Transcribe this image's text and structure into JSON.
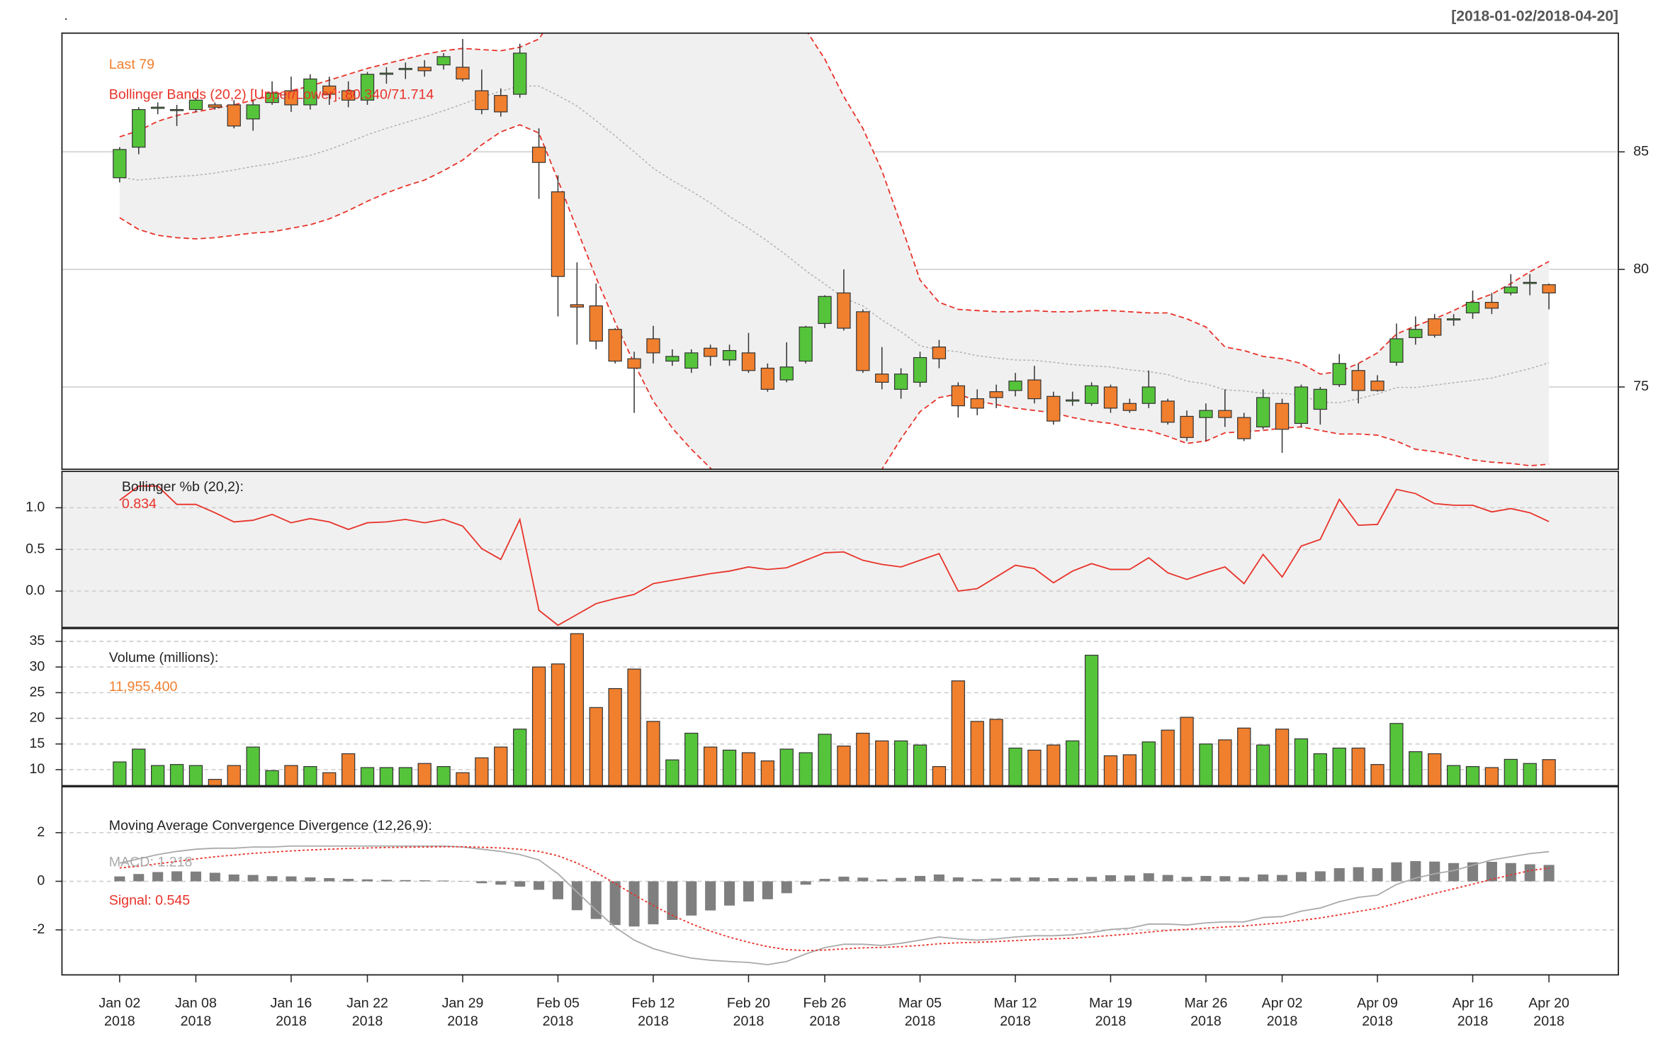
{
  "chart_data": [
    {
      "type": "candlestick",
      "name": ".",
      "title": "[2018-01-02/2018-04-20]",
      "last_label": "Last 79",
      "bbands_label": "Bollinger Bands (20,2) [Upper/Lower]: 80.340/71.714",
      "open": [
        83.9,
        85.2,
        86.85,
        86.8,
        86.8,
        87.0,
        87.0,
        86.4,
        87.1,
        87.6,
        87.0,
        87.8,
        87.6,
        87.2,
        88.3,
        88.5,
        88.6,
        88.7,
        88.6,
        87.6,
        87.4,
        87.45,
        85.2,
        83.3,
        78.5,
        78.45,
        77.45,
        76.2,
        77.05,
        76.1,
        75.8,
        76.65,
        76.15,
        76.45,
        75.8,
        75.3,
        76.1,
        77.7,
        79.0,
        78.2,
        75.55,
        74.9,
        75.2,
        76.7,
        75.05,
        74.5,
        74.8,
        74.85,
        75.3,
        74.6,
        74.4,
        74.3,
        75.0,
        74.3,
        74.3,
        74.4,
        73.75,
        73.7,
        74.0,
        73.7,
        73.3,
        74.3,
        73.45,
        74.05,
        75.1,
        75.7,
        75.25,
        76.05,
        77.1,
        77.9,
        77.85,
        78.15,
        78.6,
        79.0,
        79.4,
        79.35
      ],
      "high": [
        85.2,
        86.9,
        87.1,
        87.0,
        87.3,
        87.1,
        87.2,
        87.2,
        88.0,
        88.2,
        88.3,
        88.2,
        88.0,
        88.4,
        88.6,
        88.8,
        88.9,
        89.2,
        89.8,
        88.5,
        87.7,
        89.6,
        86.0,
        84.0,
        80.3,
        79.4,
        77.5,
        76.5,
        77.6,
        76.6,
        76.6,
        76.8,
        76.8,
        77.3,
        76.0,
        76.9,
        77.6,
        78.9,
        80.0,
        78.3,
        76.7,
        75.8,
        76.5,
        77.0,
        75.2,
        74.9,
        75.1,
        75.6,
        75.9,
        74.8,
        74.8,
        75.2,
        75.1,
        74.5,
        75.7,
        74.5,
        74.0,
        74.3,
        74.9,
        73.9,
        74.9,
        74.5,
        75.1,
        75.0,
        76.4,
        76.0,
        75.5,
        77.7,
        78.0,
        78.1,
        78.1,
        79.1,
        79.0,
        79.8,
        79.8,
        79.4
      ],
      "low": [
        83.7,
        84.9,
        86.6,
        86.1,
        86.7,
        86.8,
        86.0,
        85.9,
        87.0,
        86.7,
        86.8,
        87.0,
        86.9,
        87.0,
        87.9,
        88.1,
        88.2,
        88.5,
        88.0,
        86.6,
        86.5,
        87.3,
        83.0,
        78.0,
        76.8,
        76.6,
        76.0,
        73.9,
        76.0,
        75.9,
        75.6,
        75.9,
        75.9,
        75.6,
        74.8,
        75.2,
        76.0,
        77.5,
        77.4,
        75.6,
        74.9,
        74.5,
        75.0,
        75.8,
        73.7,
        73.8,
        74.1,
        74.6,
        74.3,
        73.4,
        74.2,
        74.2,
        73.9,
        73.9,
        74.1,
        73.4,
        72.7,
        72.7,
        73.3,
        72.7,
        73.2,
        72.2,
        73.3,
        73.4,
        75.0,
        74.3,
        74.8,
        75.9,
        76.8,
        77.1,
        77.6,
        77.9,
        78.1,
        78.9,
        78.9,
        78.3
      ],
      "close": [
        85.1,
        86.8,
        86.9,
        86.8,
        87.2,
        86.9,
        86.1,
        87.0,
        87.5,
        87.0,
        88.1,
        87.45,
        87.2,
        88.3,
        88.35,
        88.55,
        88.45,
        89.05,
        88.1,
        86.8,
        86.7,
        89.2,
        84.55,
        79.7,
        78.4,
        76.95,
        76.1,
        75.8,
        76.45,
        76.3,
        76.45,
        76.3,
        76.55,
        75.7,
        74.9,
        75.85,
        77.55,
        78.85,
        77.5,
        75.7,
        75.2,
        75.55,
        76.25,
        76.2,
        74.2,
        74.1,
        74.55,
        75.25,
        74.5,
        73.55,
        74.45,
        75.05,
        74.1,
        74.0,
        75.0,
        73.5,
        72.85,
        74.0,
        73.7,
        72.8,
        74.55,
        73.2,
        75.0,
        74.9,
        76.0,
        74.85,
        74.85,
        77.05,
        77.45,
        77.2,
        77.9,
        78.6,
        78.35,
        79.25,
        79.45,
        79.0
      ],
      "up_color": "#55c43b",
      "down_color": "#f07f2e",
      "bbands": {
        "color": "#e8332a",
        "middle_color": "#b0b0b0",
        "fill": "#f0f0f0",
        "upper": [
          85.64,
          85.9,
          86.3,
          86.55,
          86.7,
          86.85,
          87.0,
          87.2,
          87.4,
          87.6,
          87.8,
          88.05,
          88.3,
          88.55,
          88.75,
          88.95,
          89.15,
          89.3,
          89.4,
          89.35,
          89.3,
          89.45,
          89.8,
          91.0,
          92.2,
          93.0,
          93.6,
          94.0,
          94.2,
          94.3,
          94.3,
          94.1,
          93.7,
          93.2,
          92.5,
          91.5,
          90.2,
          88.95,
          87.35,
          86.0,
          84.2,
          81.9,
          79.55,
          78.6,
          78.3,
          78.25,
          78.2,
          78.2,
          78.25,
          78.2,
          78.2,
          78.25,
          78.25,
          78.2,
          78.15,
          78.15,
          77.9,
          77.55,
          76.7,
          76.55,
          76.3,
          76.2,
          76.0,
          75.55,
          75.65,
          76.0,
          76.45,
          77.25,
          77.6,
          77.9,
          78.25,
          78.65,
          78.95,
          79.4,
          79.9,
          80.34
        ],
        "middle": [
          83.92,
          83.8,
          83.88,
          83.95,
          84.0,
          84.1,
          84.23,
          84.38,
          84.5,
          84.68,
          84.85,
          85.1,
          85.4,
          85.73,
          86.0,
          86.25,
          86.48,
          86.75,
          87.03,
          87.33,
          87.58,
          87.8,
          87.8,
          87.4,
          86.95,
          86.33,
          85.68,
          85.0,
          84.3,
          83.78,
          83.33,
          82.83,
          82.25,
          81.75,
          81.2,
          80.6,
          79.95,
          79.38,
          78.78,
          78.45,
          77.85,
          77.35,
          76.75,
          76.58,
          76.5,
          76.33,
          76.23,
          76.15,
          76.13,
          76.05,
          75.95,
          75.9,
          75.85,
          75.73,
          75.65,
          75.53,
          75.25,
          75.13,
          74.88,
          74.83,
          74.73,
          74.73,
          74.65,
          74.35,
          74.33,
          74.5,
          74.7,
          74.98,
          74.98,
          75.08,
          75.18,
          75.28,
          75.38,
          75.58,
          75.78,
          76.03
        ],
        "lower": [
          82.2,
          81.7,
          81.45,
          81.35,
          81.3,
          81.35,
          81.45,
          81.55,
          81.6,
          81.75,
          81.9,
          82.15,
          82.5,
          82.9,
          83.25,
          83.55,
          83.8,
          84.2,
          84.65,
          85.3,
          85.85,
          86.15,
          85.8,
          83.8,
          81.7,
          79.65,
          77.75,
          76.0,
          74.4,
          73.25,
          72.35,
          71.55,
          70.8,
          70.3,
          69.9,
          69.7,
          69.7,
          69.8,
          70.2,
          70.9,
          71.5,
          72.8,
          73.95,
          74.55,
          74.7,
          74.4,
          74.25,
          74.1,
          74.0,
          73.9,
          73.7,
          73.55,
          73.45,
          73.25,
          73.15,
          72.9,
          72.6,
          72.7,
          73.05,
          73.1,
          73.15,
          73.25,
          73.3,
          73.15,
          73.0,
          73.0,
          72.95,
          72.7,
          72.35,
          72.25,
          72.1,
          71.9,
          71.8,
          71.75,
          71.65,
          71.714
        ]
      },
      "ylim": [
        71.5,
        90.05
      ],
      "yticks": [
        75,
        80,
        85
      ],
      "grid": "solid"
    },
    {
      "type": "line",
      "title": "Bollinger %b (20,2):",
      "value_label": "0.834",
      "color": "#e8332a",
      "values": [
        1.09,
        1.26,
        1.26,
        1.04,
        1.04,
        0.94,
        0.83,
        0.85,
        0.92,
        0.82,
        0.87,
        0.83,
        0.74,
        0.82,
        0.83,
        0.86,
        0.82,
        0.86,
        0.78,
        0.51,
        0.38,
        0.86,
        -0.23,
        -0.41,
        -0.28,
        -0.15,
        -0.09,
        -0.04,
        0.09,
        0.13,
        0.17,
        0.21,
        0.24,
        0.29,
        0.26,
        0.28,
        0.37,
        0.46,
        0.47,
        0.37,
        0.32,
        0.29,
        0.37,
        0.45,
        0.0,
        0.03,
        0.17,
        0.31,
        0.27,
        0.1,
        0.24,
        0.33,
        0.26,
        0.26,
        0.4,
        0.22,
        0.14,
        0.22,
        0.29,
        0.09,
        0.44,
        0.17,
        0.54,
        0.62,
        1.1,
        0.79,
        0.8,
        1.22,
        1.17,
        1.05,
        1.03,
        1.03,
        0.95,
        0.99,
        0.94,
        0.834
      ],
      "ylim": [
        -0.436,
        1.436
      ],
      "yticks": [
        {
          "value": 0,
          "label": "0.0"
        },
        0.5,
        {
          "value": 1,
          "label": "1.0"
        }
      ],
      "grid": "dashed"
    },
    {
      "type": "bar",
      "title": "Volume (millions):",
      "value_label": "11,955,400",
      "values": [
        11.5,
        14.0,
        10.8,
        11.0,
        10.8,
        8.1,
        10.8,
        14.4,
        9.8,
        10.8,
        10.6,
        9.4,
        13.1,
        10.4,
        10.4,
        10.4,
        11.2,
        10.6,
        9.4,
        12.3,
        14.4,
        17.9,
        30.0,
        30.6,
        36.5,
        22.1,
        25.8,
        29.6,
        19.4,
        11.9,
        17.1,
        14.4,
        13.8,
        13.3,
        11.7,
        14.0,
        13.3,
        16.9,
        14.6,
        17.1,
        15.6,
        15.6,
        14.8,
        10.6,
        27.3,
        19.4,
        19.8,
        14.2,
        13.8,
        14.8,
        15.6,
        32.3,
        12.7,
        12.9,
        15.4,
        17.7,
        20.2,
        15.0,
        15.8,
        18.1,
        14.8,
        17.9,
        16.0,
        13.1,
        14.2,
        14.2,
        11.0,
        19.0,
        13.5,
        13.1,
        10.8,
        10.6,
        10.4,
        12.0,
        11.2,
        11.9554
      ],
      "ylim": [
        6.875,
        37.5
      ],
      "yticks": [
        10,
        15,
        20,
        25,
        30,
        35
      ],
      "grid": "dashed"
    },
    {
      "type": "macd",
      "title": "Moving Average Convergence Divergence (12,26,9):",
      "series": [
        {
          "label": "MACD: 1.218",
          "color": "#aaaaaa",
          "dash": "none",
          "values": [
            0.75,
            0.92,
            1.1,
            1.23,
            1.32,
            1.36,
            1.36,
            1.41,
            1.41,
            1.45,
            1.45,
            1.45,
            1.45,
            1.45,
            1.45,
            1.45,
            1.45,
            1.45,
            1.41,
            1.32,
            1.23,
            1.1,
            0.88,
            0.31,
            -0.44,
            -1.19,
            -1.89,
            -2.42,
            -2.77,
            -2.99,
            -3.16,
            -3.25,
            -3.3,
            -3.34,
            -3.43,
            -3.3,
            -2.99,
            -2.73,
            -2.59,
            -2.59,
            -2.64,
            -2.55,
            -2.42,
            -2.29,
            -2.37,
            -2.42,
            -2.37,
            -2.29,
            -2.24,
            -2.24,
            -2.2,
            -2.11,
            -1.98,
            -1.93,
            -1.76,
            -1.76,
            -1.8,
            -1.71,
            -1.67,
            -1.67,
            -1.49,
            -1.45,
            -1.23,
            -1.1,
            -0.84,
            -0.66,
            -0.57,
            -0.13,
            0.13,
            0.31,
            0.44,
            0.66,
            0.88,
            1.01,
            1.14,
            1.218
          ]
        },
        {
          "label": "Signal: 0.545",
          "color": "#e8332a",
          "dash": "2 2",
          "values": [
            0.55,
            0.62,
            0.72,
            0.82,
            0.92,
            1.01,
            1.08,
            1.15,
            1.2,
            1.25,
            1.29,
            1.32,
            1.35,
            1.37,
            1.39,
            1.4,
            1.41,
            1.42,
            1.42,
            1.4,
            1.37,
            1.32,
            1.23,
            1.05,
            0.75,
            0.36,
            -0.09,
            -0.56,
            -1.0,
            -1.4,
            -1.75,
            -2.05,
            -2.3,
            -2.51,
            -2.69,
            -2.81,
            -2.85,
            -2.83,
            -2.78,
            -2.74,
            -2.72,
            -2.69,
            -2.64,
            -2.57,
            -2.53,
            -2.51,
            -2.48,
            -2.44,
            -2.4,
            -2.37,
            -2.34,
            -2.29,
            -2.23,
            -2.17,
            -2.09,
            -2.02,
            -1.98,
            -1.93,
            -1.88,
            -1.84,
            -1.77,
            -1.71,
            -1.61,
            -1.51,
            -1.38,
            -1.24,
            -1.11,
            -0.91,
            -0.7,
            -0.5,
            -0.31,
            -0.12,
            0.08,
            0.26,
            0.44,
            0.545
          ]
        }
      ],
      "histogram": {
        "color": "#7f7f7f",
        "values": [
          0.2,
          0.3,
          0.38,
          0.41,
          0.4,
          0.35,
          0.28,
          0.26,
          0.21,
          0.2,
          0.16,
          0.13,
          0.1,
          0.08,
          0.06,
          0.05,
          0.04,
          0.03,
          -0.01,
          -0.08,
          -0.14,
          -0.22,
          -0.35,
          -0.74,
          -1.19,
          -1.55,
          -1.8,
          -1.86,
          -1.77,
          -1.59,
          -1.41,
          -1.2,
          -1.0,
          -0.83,
          -0.74,
          -0.49,
          -0.14,
          0.1,
          0.19,
          0.15,
          0.08,
          0.14,
          0.22,
          0.28,
          0.16,
          0.09,
          0.11,
          0.15,
          0.16,
          0.13,
          0.14,
          0.18,
          0.25,
          0.24,
          0.33,
          0.26,
          0.18,
          0.22,
          0.21,
          0.17,
          0.28,
          0.26,
          0.38,
          0.41,
          0.54,
          0.58,
          0.54,
          0.78,
          0.83,
          0.81,
          0.75,
          0.78,
          0.8,
          0.75,
          0.7,
          0.673
        ]
      },
      "ylim": [
        -3.85,
        3.89
      ],
      "yticks": [
        -2,
        0,
        2
      ],
      "grid": "dashed",
      "categories": [
        [
          "Jan 02",
          "2018"
        ],
        null,
        null,
        null,
        [
          "Jan 08",
          "2018"
        ],
        null,
        null,
        null,
        null,
        [
          "Jan 16",
          "2018"
        ],
        null,
        null,
        null,
        [
          "Jan 22",
          "2018"
        ],
        null,
        null,
        null,
        null,
        [
          "Jan 29",
          "2018"
        ],
        null,
        null,
        null,
        null,
        [
          "Feb 05",
          "2018"
        ],
        null,
        null,
        null,
        null,
        [
          "Feb 12",
          "2018"
        ],
        null,
        null,
        null,
        null,
        [
          "Feb 20",
          "2018"
        ],
        null,
        null,
        null,
        [
          "Feb 26",
          "2018"
        ],
        null,
        null,
        null,
        null,
        [
          "Mar 05",
          "2018"
        ],
        null,
        null,
        null,
        null,
        [
          "Mar 12",
          "2018"
        ],
        null,
        null,
        null,
        null,
        [
          "Mar 19",
          "2018"
        ],
        null,
        null,
        null,
        null,
        [
          "Mar 26",
          "2018"
        ],
        null,
        null,
        null,
        [
          "Apr 02",
          "2018"
        ],
        null,
        null,
        null,
        null,
        [
          "Apr 09",
          "2018"
        ],
        null,
        null,
        null,
        null,
        [
          "Apr 16",
          "2018"
        ],
        null,
        null,
        null,
        [
          "Apr 20",
          "2018"
        ]
      ]
    }
  ]
}
